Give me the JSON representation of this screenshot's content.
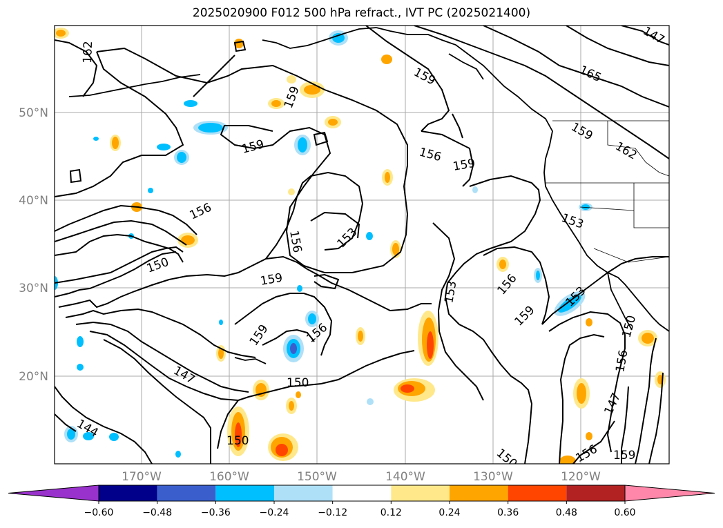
{
  "title": "2025020900 F012 500 hPa refract., IVT PC (2025021400)",
  "lat_ticks": [
    "50°N",
    "40°N",
    "30°N",
    "20°N"
  ],
  "lon_ticks": [
    "170°W",
    "160°W",
    "150°W",
    "140°W",
    "130°W",
    "120°W"
  ],
  "contour_labels": [
    "162",
    "159",
    "159",
    "165",
    "159",
    "162",
    "156",
    "159",
    "159",
    "156",
    "153",
    "156",
    "150",
    "159",
    "153",
    "153",
    "156",
    "159",
    "159",
    "156",
    "153",
    "150",
    "147",
    "150",
    "147",
    "144",
    "156",
    "150",
    "147",
    "159",
    "150",
    "156",
    "153"
  ],
  "colorbar": {
    "labels": [
      "−0.60",
      "−0.48",
      "−0.36",
      "−0.24",
      "−0.12",
      "0.12",
      "0.24",
      "0.36",
      "0.48",
      "0.60"
    ],
    "colors": [
      "#9932cc",
      "#00008b",
      "#3a5fcd",
      "#00bfff",
      "#aee0f8",
      "#ffffff",
      "#ffe88a",
      "#ffa500",
      "#ff4500",
      "#b22222",
      "#ff88aa"
    ]
  },
  "fill_colors": {
    "neg1": "#aee0f8",
    "neg2": "#00bfff",
    "neg3": "#3a5fcd",
    "pos1": "#ffe88a",
    "pos2": "#ffa500",
    "pos3": "#ff4500"
  }
}
